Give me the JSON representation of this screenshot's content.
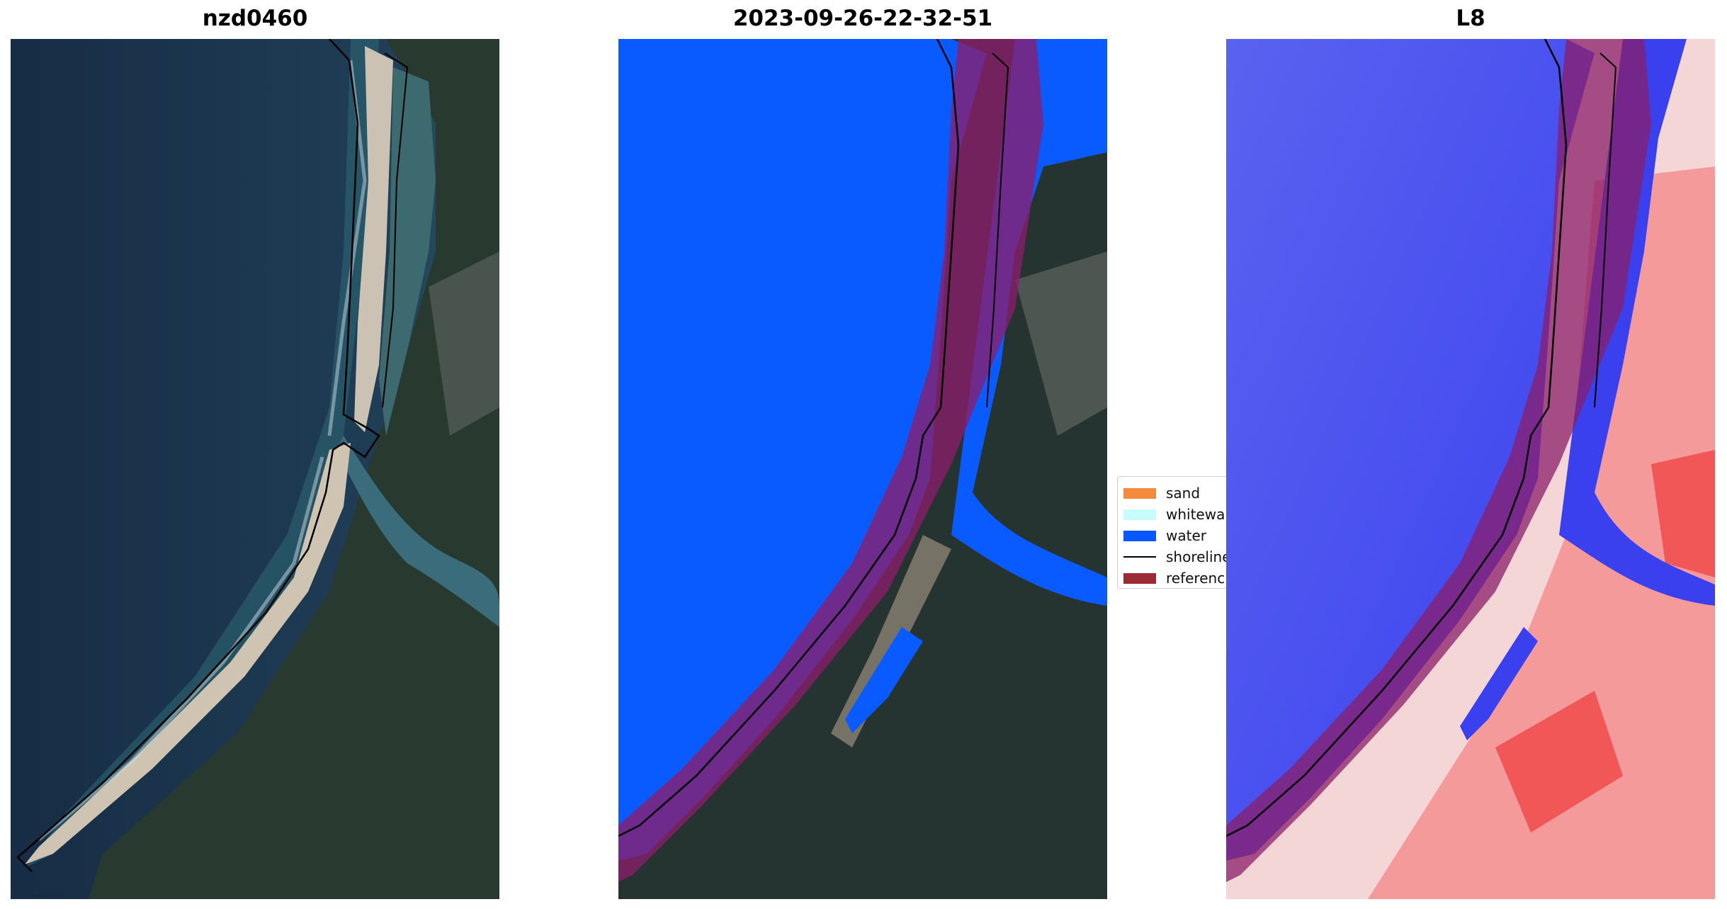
{
  "panels": {
    "left": {
      "title": "nzd0460"
    },
    "middle": {
      "title": "2023-09-26-22-32-51"
    },
    "right": {
      "title": "L8"
    }
  },
  "legend": {
    "items": [
      {
        "label": "sand",
        "color": "#f38a3c",
        "kind": "patch"
      },
      {
        "label": "whitewa",
        "color": "#c8fbfb",
        "kind": "patch"
      },
      {
        "label": "water",
        "color": "#0b57ff",
        "kind": "patch"
      },
      {
        "label": "shoreline",
        "color": "#000000",
        "kind": "line"
      },
      {
        "label": "referenc",
        "color": "#9b2c35",
        "kind": "patch"
      }
    ]
  },
  "colors": {
    "ocean": "#1e3448",
    "water_class": "#0a5bff",
    "reference_band": "#8a1d6a",
    "land_dark": "#263531",
    "sand": "#cfc3b0",
    "index_water": "#4046f2",
    "index_land": "#f24a4a"
  }
}
